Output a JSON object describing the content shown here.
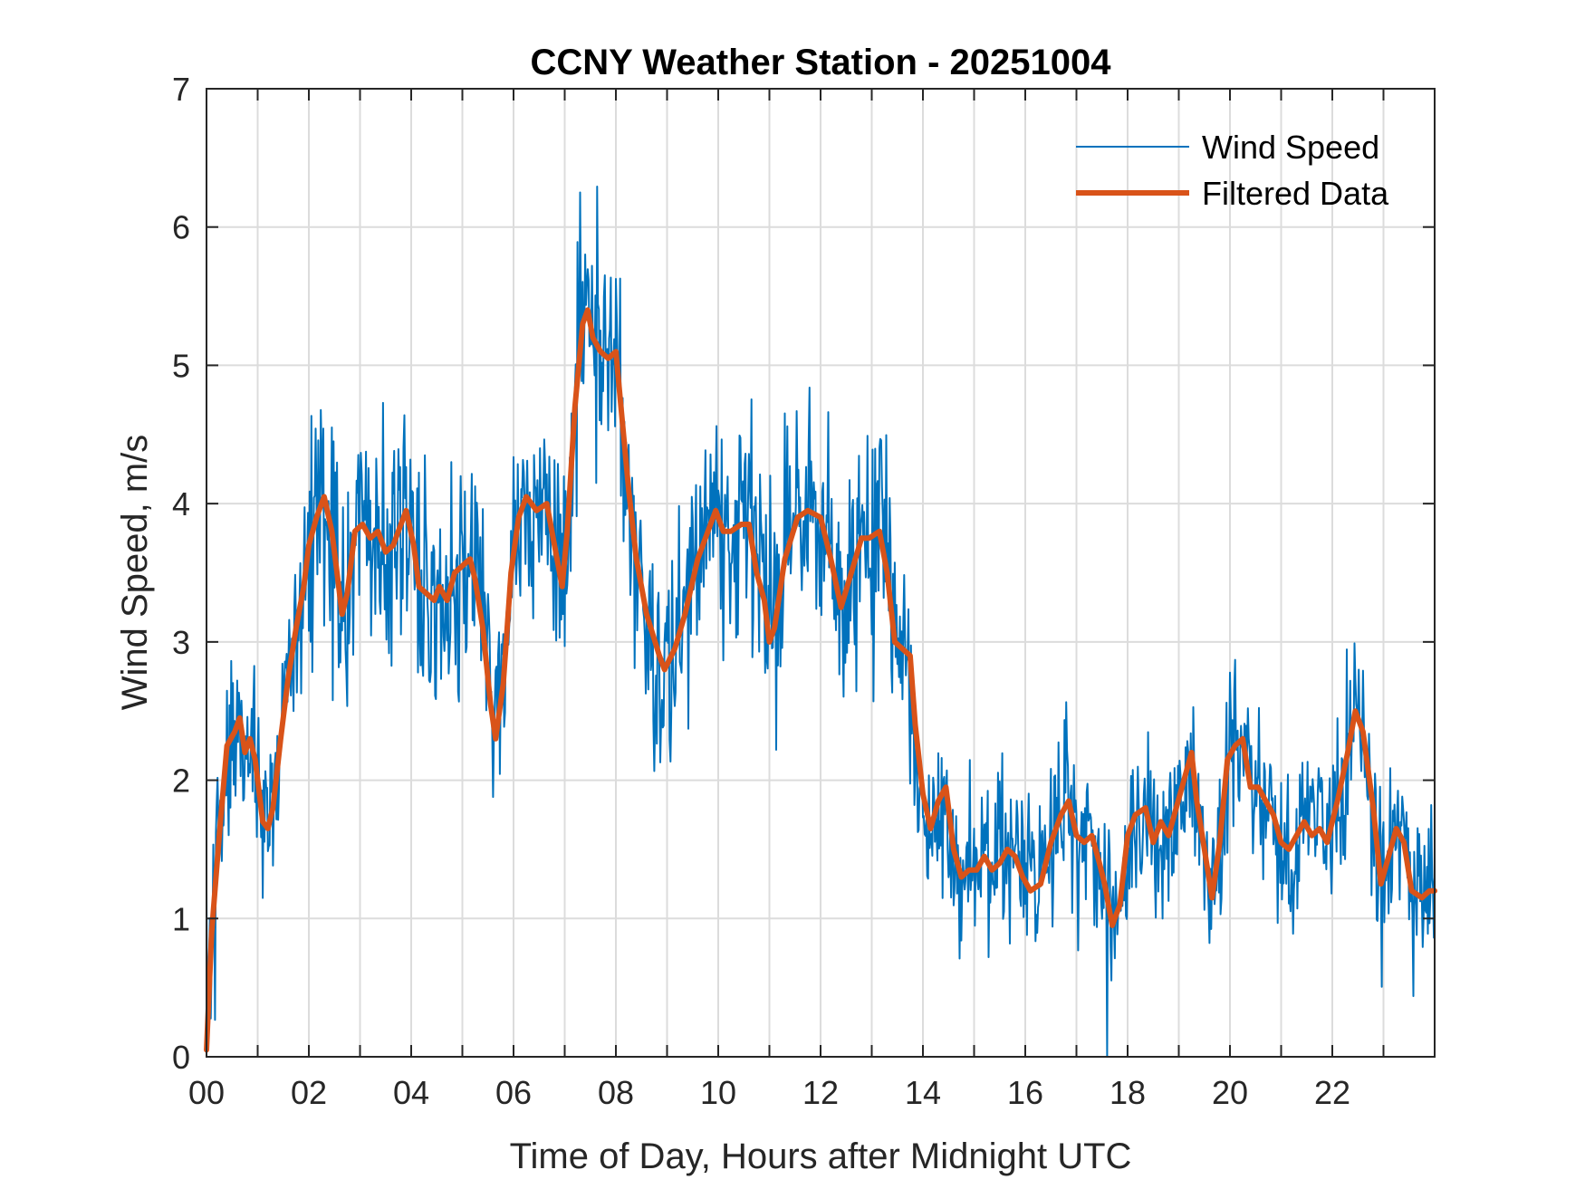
{
  "chart_data": {
    "type": "line",
    "title": "CCNY Weather Station - 20251004",
    "xlabel": "Time of Day, Hours after Midnight UTC",
    "ylabel": "Wind Speed, m/s",
    "xlim": [
      0,
      24
    ],
    "ylim": [
      0,
      7
    ],
    "xticks": [
      0,
      2,
      4,
      6,
      8,
      10,
      12,
      14,
      16,
      18,
      20,
      22
    ],
    "xtick_labels": [
      "00",
      "02",
      "04",
      "06",
      "08",
      "10",
      "12",
      "14",
      "16",
      "18",
      "20",
      "22"
    ],
    "x_minor_grid_step": 1,
    "yticks": [
      0,
      1,
      2,
      3,
      4,
      5,
      6,
      7
    ],
    "ytick_labels": [
      "0",
      "1",
      "2",
      "3",
      "4",
      "5",
      "6",
      "7"
    ],
    "grid": true,
    "legend": {
      "placement": "top-right",
      "entries": [
        "Wind Speed",
        "Filtered Data"
      ]
    },
    "series": [
      {
        "name": "Wind Speed",
        "color": "#0072BD",
        "style": "thin",
        "sampling_minutes": 1,
        "description": "Raw 1-minute wind speed, fluctuating around the filtered curve",
        "noise": {
          "seed": 20251004,
          "spread_high_wind": 0.75,
          "spread_low_wind": 0.55
        },
        "extremes": {
          "max": {
            "x": 7.3,
            "y": 6.25
          },
          "min": {
            "x": 17.6,
            "y": 0.0
          }
        }
      },
      {
        "name": "Filtered Data",
        "color": "#D95319",
        "style": "thick",
        "x": [
          0.0,
          0.1,
          0.25,
          0.4,
          0.55,
          0.65,
          0.75,
          0.85,
          0.95,
          1.1,
          1.2,
          1.3,
          1.45,
          1.6,
          1.75,
          1.9,
          2.0,
          2.15,
          2.3,
          2.45,
          2.55,
          2.65,
          2.75,
          2.9,
          3.05,
          3.2,
          3.35,
          3.5,
          3.65,
          3.8,
          3.9,
          4.05,
          4.15,
          4.3,
          4.45,
          4.55,
          4.7,
          4.85,
          5.0,
          5.15,
          5.25,
          5.4,
          5.55,
          5.65,
          5.8,
          5.95,
          6.1,
          6.25,
          6.45,
          6.65,
          6.85,
          6.95,
          7.05,
          7.2,
          7.35,
          7.45,
          7.55,
          7.7,
          7.85,
          8.0,
          8.1,
          8.25,
          8.4,
          8.6,
          8.85,
          8.95,
          9.15,
          9.35,
          9.6,
          9.85,
          9.95,
          10.1,
          10.25,
          10.45,
          10.6,
          10.75,
          10.9,
          11.0,
          11.1,
          11.3,
          11.55,
          11.75,
          12.0,
          12.2,
          12.4,
          12.6,
          12.8,
          12.95,
          13.15,
          13.3,
          13.45,
          13.6,
          13.75,
          13.85,
          14.0,
          14.15,
          14.3,
          14.45,
          14.6,
          14.75,
          14.9,
          15.05,
          15.2,
          15.35,
          15.5,
          15.65,
          15.8,
          15.95,
          16.1,
          16.3,
          16.5,
          16.7,
          16.85,
          17.0,
          17.15,
          17.3,
          17.45,
          17.55,
          17.7,
          17.85,
          18.0,
          18.15,
          18.35,
          18.5,
          18.65,
          18.8,
          18.95,
          19.1,
          19.25,
          19.35,
          19.5,
          19.65,
          19.8,
          19.95,
          20.1,
          20.25,
          20.4,
          20.55,
          20.7,
          20.85,
          21.0,
          21.15,
          21.3,
          21.45,
          21.6,
          21.75,
          21.9,
          22.1,
          22.3,
          22.45,
          22.6,
          22.8,
          22.95,
          23.1,
          23.25,
          23.4,
          23.55,
          23.75,
          23.9,
          24.0
        ],
        "y": [
          0.05,
          0.9,
          1.6,
          2.25,
          2.35,
          2.45,
          2.2,
          2.3,
          2.15,
          1.7,
          1.65,
          1.8,
          2.3,
          2.75,
          3.1,
          3.4,
          3.7,
          3.9,
          4.05,
          3.8,
          3.5,
          3.2,
          3.35,
          3.8,
          3.85,
          3.75,
          3.8,
          3.65,
          3.7,
          3.85,
          3.95,
          3.7,
          3.4,
          3.35,
          3.3,
          3.4,
          3.3,
          3.5,
          3.55,
          3.6,
          3.45,
          3.1,
          2.55,
          2.3,
          2.7,
          3.5,
          3.9,
          4.05,
          3.95,
          4.0,
          3.6,
          3.4,
          3.8,
          4.7,
          5.3,
          5.4,
          5.2,
          5.1,
          5.05,
          5.1,
          4.7,
          4.1,
          3.6,
          3.2,
          2.9,
          2.8,
          2.95,
          3.2,
          3.6,
          3.85,
          3.95,
          3.8,
          3.8,
          3.85,
          3.85,
          3.5,
          3.3,
          3.0,
          3.1,
          3.6,
          3.9,
          3.95,
          3.9,
          3.6,
          3.25,
          3.5,
          3.75,
          3.75,
          3.8,
          3.5,
          3.0,
          2.95,
          2.9,
          2.4,
          1.9,
          1.65,
          1.85,
          1.95,
          1.5,
          1.3,
          1.35,
          1.35,
          1.45,
          1.35,
          1.4,
          1.5,
          1.45,
          1.3,
          1.2,
          1.25,
          1.55,
          1.75,
          1.85,
          1.6,
          1.55,
          1.6,
          1.4,
          1.25,
          0.95,
          1.1,
          1.6,
          1.75,
          1.8,
          1.55,
          1.7,
          1.6,
          1.8,
          2.0,
          2.2,
          1.85,
          1.5,
          1.15,
          1.55,
          2.15,
          2.25,
          2.3,
          1.95,
          1.95,
          1.85,
          1.75,
          1.55,
          1.5,
          1.6,
          1.7,
          1.6,
          1.65,
          1.55,
          1.85,
          2.2,
          2.5,
          2.35,
          1.8,
          1.25,
          1.45,
          1.65,
          1.55,
          1.2,
          1.15,
          1.2,
          1.2
        ]
      }
    ]
  }
}
